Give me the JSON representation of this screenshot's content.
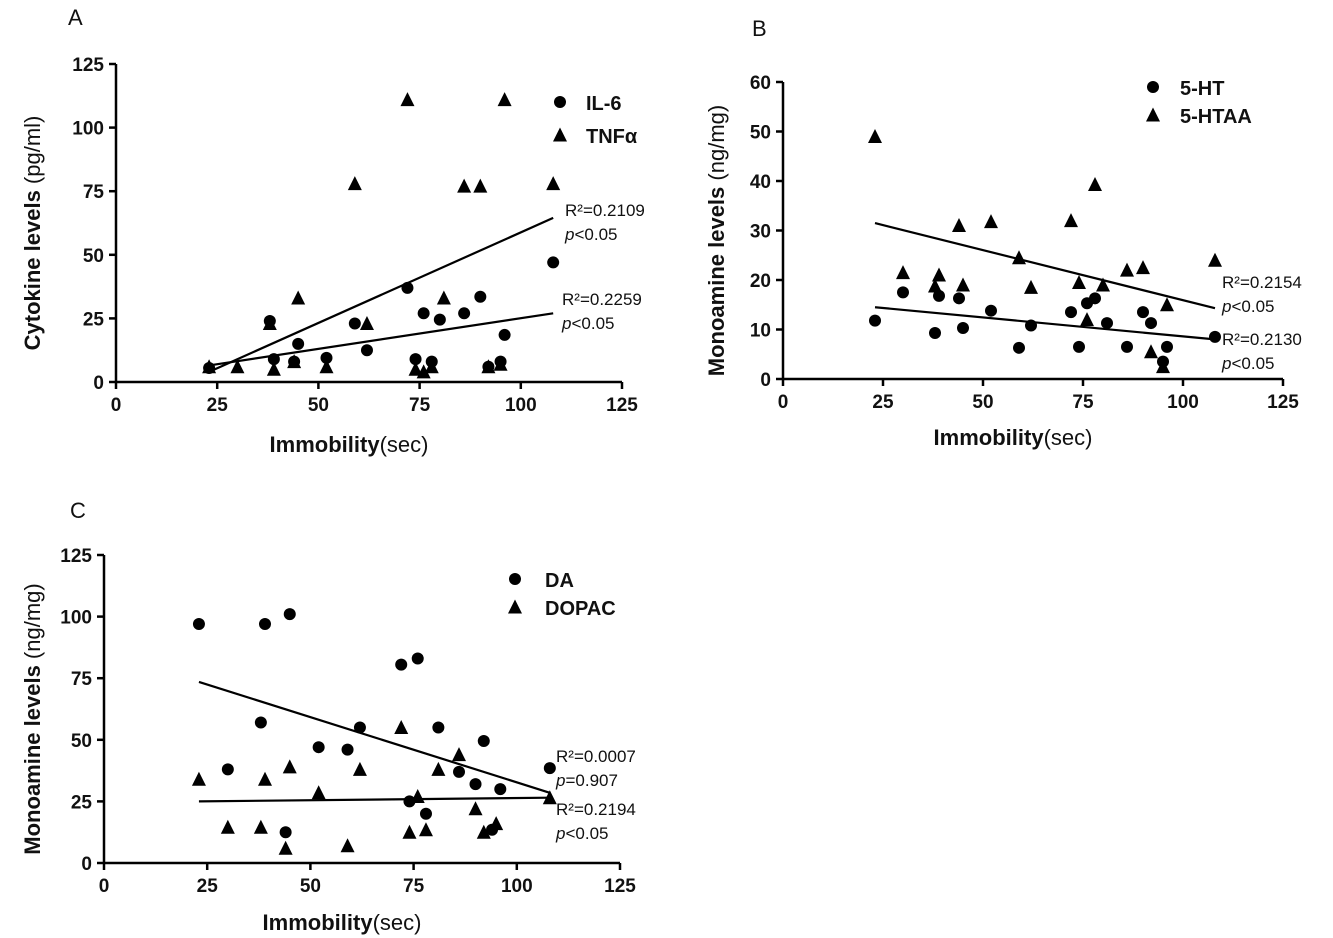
{
  "chart_data": [
    {
      "panel": "A",
      "type": "scatter",
      "xlabel_bold": "Immobility",
      "xlabel_unit": "(sec)",
      "ylabel_bold": "Cytokine levels",
      "ylabel_unit": "(pg/ml)",
      "xlim": [
        0,
        125
      ],
      "ylim": [
        0,
        125
      ],
      "xticks": [
        "0",
        "25",
        "50",
        "75",
        "100",
        "125"
      ],
      "yticks": [
        "0",
        "25",
        "50",
        "75",
        "100",
        "125"
      ],
      "legend": "top-right",
      "series": [
        {
          "name": "IL-6",
          "marker": "circle",
          "x": [
            23,
            38,
            39,
            44,
            45,
            52,
            59,
            62,
            72,
            74,
            76,
            78,
            80,
            86,
            90,
            92,
            95,
            96,
            108
          ],
          "y": [
            5.5,
            24,
            9,
            8,
            15,
            9.5,
            23,
            12.5,
            37,
            9,
            27,
            8,
            24.5,
            27,
            33.5,
            6,
            8,
            18.5,
            47
          ],
          "fit": [
            [
              23,
              6.5
            ],
            [
              108,
              27
            ]
          ],
          "r2": "R²=0.2259",
          "p": "p<0.05"
        },
        {
          "name": "TNFα",
          "marker": "triangle",
          "x": [
            23,
            30,
            38,
            39,
            44,
            45,
            52,
            59,
            62,
            72,
            74,
            76,
            78,
            81,
            86,
            90,
            92,
            95,
            96,
            108
          ],
          "y": [
            6,
            6,
            23,
            5,
            8,
            33,
            6,
            78,
            23,
            111,
            5,
            4,
            6,
            33,
            77,
            77,
            6,
            7,
            111,
            78
          ],
          "fit": [
            [
              23,
              4
            ],
            [
              108,
              64.5
            ]
          ],
          "r2": "R²=0.2109",
          "p": "p<0.05"
        }
      ]
    },
    {
      "panel": "B",
      "type": "scatter",
      "xlabel_bold": "Immobility",
      "xlabel_unit": "(sec)",
      "ylabel_bold": "Monoamine levels",
      "ylabel_unit": "(ng/mg)",
      "xlim": [
        0,
        125
      ],
      "ylim": [
        0,
        60
      ],
      "xticks": [
        "0",
        "25",
        "50",
        "75",
        "100",
        "125"
      ],
      "yticks": [
        "0",
        "10",
        "20",
        "30",
        "40",
        "50",
        "60"
      ],
      "legend": "top-right",
      "series": [
        {
          "name": "5-HT",
          "marker": "circle",
          "x": [
            23,
            30,
            38,
            39,
            44,
            45,
            52,
            59,
            62,
            72,
            74,
            76,
            78,
            81,
            86,
            90,
            92,
            95,
            96,
            108
          ],
          "y": [
            11.8,
            17.5,
            9.3,
            16.8,
            16.3,
            10.3,
            13.8,
            6.3,
            10.8,
            13.5,
            6.5,
            15.3,
            16.3,
            11.3,
            6.5,
            13.5,
            11.3,
            3.5,
            6.5,
            8.5
          ],
          "fit": [
            [
              23,
              14.5
            ],
            [
              108,
              8
            ]
          ],
          "r2": "R²=0.2130",
          "p": "p<0.05"
        },
        {
          "name": "5-HTAA",
          "marker": "triangle",
          "x": [
            23,
            30,
            38,
            39,
            44,
            45,
            52,
            59,
            62,
            72,
            74,
            76,
            78,
            80,
            86,
            90,
            92,
            95,
            96,
            108
          ],
          "y": [
            49,
            21.5,
            18.8,
            21,
            31,
            19,
            31.8,
            24.5,
            18.5,
            32,
            19.5,
            12,
            39.3,
            19,
            22,
            22.5,
            5.5,
            2.5,
            15,
            24
          ],
          "fit": [
            [
              23,
              31.5
            ],
            [
              108,
              14.3
            ]
          ],
          "r2": "R²=0.2154",
          "p": "p<0.05"
        }
      ]
    },
    {
      "panel": "C",
      "type": "scatter",
      "xlabel_bold": "Immobility",
      "xlabel_unit": "(sec)",
      "ylabel_bold": "Monoamine levels",
      "ylabel_unit": "(ng/mg)",
      "xlim": [
        0,
        125
      ],
      "ylim": [
        0,
        125
      ],
      "xticks": [
        "0",
        "25",
        "50",
        "75",
        "100",
        "125"
      ],
      "yticks": [
        "0",
        "25",
        "50",
        "75",
        "100",
        "125"
      ],
      "legend": "top-right",
      "series": [
        {
          "name": "DA",
          "marker": "circle",
          "x": [
            23,
            30,
            38,
            39,
            44,
            45,
            52,
            59,
            62,
            72,
            74,
            76,
            78,
            81,
            86,
            90,
            92,
            94,
            96,
            108
          ],
          "y": [
            97,
            38,
            57,
            97,
            12.5,
            101,
            47,
            46,
            55,
            80.5,
            25,
            83,
            20,
            55,
            37,
            32,
            49.5,
            13.5,
            30,
            38.5
          ],
          "fit": [
            [
              23,
              73.5
            ],
            [
              108,
              28.5
            ]
          ],
          "r2": "R²=0.2194",
          "p": "p<0.05"
        },
        {
          "name": "DOPAC",
          "marker": "triangle",
          "x": [
            23,
            30,
            38,
            39,
            44,
            45,
            52,
            59,
            62,
            72,
            74,
            76,
            78,
            81,
            86,
            90,
            92,
            95,
            108
          ],
          "y": [
            34,
            14.5,
            14.5,
            34,
            6,
            39,
            28.5,
            7,
            38,
            55,
            12.5,
            27,
            13.5,
            38,
            44,
            22,
            12.5,
            16,
            26.5
          ],
          "fit": [
            [
              23,
              25
            ],
            [
              108,
              26.5
            ]
          ],
          "r2": "R²=0.0007",
          "p": "p=0.907"
        }
      ]
    }
  ]
}
